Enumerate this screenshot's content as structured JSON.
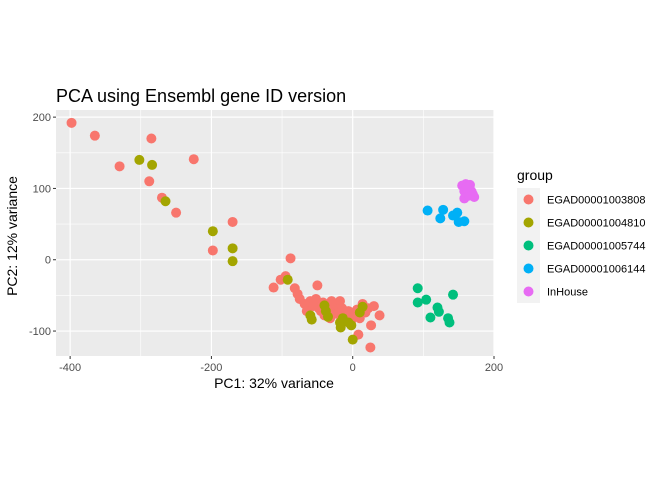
{
  "chart_data": {
    "type": "scatter",
    "title": "PCA using Ensembl gene ID version",
    "xlabel": "PC1: 32% variance",
    "ylabel": "PC2: 12% variance",
    "xlim": [
      -420,
      200
    ],
    "ylim": [
      -135,
      210
    ],
    "x_ticks": [
      -400,
      -200,
      0,
      200
    ],
    "x_tick_labels": [
      "-400",
      "-200",
      "0",
      "200"
    ],
    "y_ticks": [
      -100,
      0,
      100,
      200
    ],
    "y_tick_labels": [
      "-100",
      "0",
      "100",
      "200"
    ],
    "x_minor": [
      -300,
      -100,
      100
    ],
    "y_minor": [
      -50,
      50,
      150
    ],
    "grid": true,
    "panel_background": "#ebebeb",
    "legend": {
      "title": "group",
      "position": "right",
      "entries": [
        "EGAD00001003808",
        "EGAD00001004810",
        "EGAD00001005744",
        "EGAD00001006144",
        "InHouse"
      ]
    },
    "series": [
      {
        "name": "EGAD00001003808",
        "color": "#F8766D",
        "points": [
          [
            -398,
            192
          ],
          [
            -365,
            174
          ],
          [
            -330,
            131
          ],
          [
            -285,
            170
          ],
          [
            -288,
            110
          ],
          [
            -270,
            87
          ],
          [
            -250,
            66
          ],
          [
            -225,
            141
          ],
          [
            -170,
            53
          ],
          [
            -198,
            13
          ],
          [
            -88,
            2
          ],
          [
            -112,
            -39
          ],
          [
            -102,
            -28
          ],
          [
            -95,
            -23
          ],
          [
            -82,
            -40
          ],
          [
            -78,
            -48
          ],
          [
            -75,
            -55
          ],
          [
            -68,
            -62
          ],
          [
            -60,
            -58
          ],
          [
            -56,
            -65
          ],
          [
            -52,
            -55
          ],
          [
            -48,
            -68
          ],
          [
            -45,
            -72
          ],
          [
            -42,
            -60
          ],
          [
            -40,
            -78
          ],
          [
            -36,
            -65
          ],
          [
            -32,
            -82
          ],
          [
            -28,
            -70
          ],
          [
            -24,
            -62
          ],
          [
            -20,
            -75
          ],
          [
            -18,
            -58
          ],
          [
            -15,
            -68
          ],
          [
            -10,
            -80
          ],
          [
            -6,
            -72
          ],
          [
            -2,
            -85
          ],
          [
            2,
            -75
          ],
          [
            6,
            -70
          ],
          [
            10,
            -82
          ],
          [
            14,
            -62
          ],
          [
            18,
            -74
          ],
          [
            22,
            -68
          ],
          [
            26,
            -92
          ],
          [
            30,
            -65
          ],
          [
            38,
            -78
          ],
          [
            8,
            -105
          ],
          [
            25,
            -123
          ],
          [
            -50,
            -36
          ],
          [
            -65,
            -72
          ],
          [
            -30,
            -58
          ],
          [
            -22,
            -76
          ]
        ]
      },
      {
        "name": "EGAD00001004810",
        "color": "#A3A500",
        "points": [
          [
            -302,
            140
          ],
          [
            -284,
            133
          ],
          [
            -265,
            82
          ],
          [
            -198,
            40
          ],
          [
            -170,
            16
          ],
          [
            -170,
            -2
          ],
          [
            -92,
            -28
          ],
          [
            -60,
            -78
          ],
          [
            -58,
            -84
          ],
          [
            -38,
            -72
          ],
          [
            -35,
            -80
          ],
          [
            -18,
            -88
          ],
          [
            -17,
            -95
          ],
          [
            -14,
            -82
          ],
          [
            -2,
            -92
          ],
          [
            0,
            -112
          ],
          [
            10,
            -74
          ],
          [
            14,
            -66
          ],
          [
            -40,
            -64
          ],
          [
            -6,
            -88
          ]
        ]
      },
      {
        "name": "EGAD00001005744",
        "color": "#00BF7D",
        "points": [
          [
            92,
            -40
          ],
          [
            92,
            -60
          ],
          [
            104,
            -56
          ],
          [
            110,
            -81
          ],
          [
            120,
            -67
          ],
          [
            122,
            -73
          ],
          [
            135,
            -82
          ],
          [
            137,
            -88
          ],
          [
            142,
            -49
          ]
        ]
      },
      {
        "name": "EGAD00001006144",
        "color": "#00B0F6",
        "points": [
          [
            106,
            69
          ],
          [
            124,
            58
          ],
          [
            128,
            70
          ],
          [
            142,
            62
          ],
          [
            148,
            66
          ],
          [
            150,
            53
          ],
          [
            158,
            54
          ]
        ]
      },
      {
        "name": "InHouse",
        "color": "#E76BF3",
        "points": [
          [
            155,
            104
          ],
          [
            158,
            96
          ],
          [
            160,
            106
          ],
          [
            162,
            99
          ],
          [
            164,
            102
          ],
          [
            166,
            105
          ],
          [
            168,
            96
          ],
          [
            170,
            92
          ],
          [
            158,
            86
          ],
          [
            172,
            88
          ],
          [
            165,
            90
          ],
          [
            161,
            101
          ]
        ]
      }
    ]
  }
}
